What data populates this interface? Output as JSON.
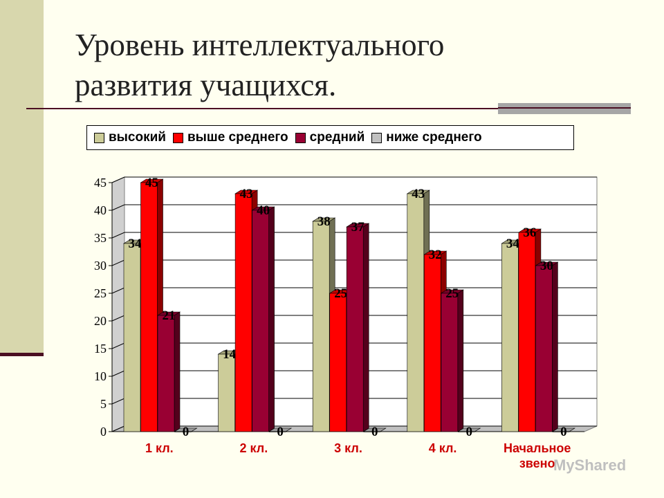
{
  "slide": {
    "title_line1": "Уровень интеллектуального",
    "title_line2": "развития учащихся."
  },
  "watermark": "MyShared",
  "chart_data": {
    "type": "bar",
    "categories": [
      "1 кл.",
      "2 кл.",
      "3 кл.",
      "4 кл.",
      "Начальное звено"
    ],
    "series": [
      {
        "name": "высокий",
        "values": [
          34,
          14,
          38,
          43,
          34
        ],
        "color": "#cccc99"
      },
      {
        "name": "выше среднего",
        "values": [
          45,
          43,
          25,
          32,
          36
        ],
        "color": "#ff0000"
      },
      {
        "name": "средний",
        "values": [
          21,
          40,
          37,
          25,
          30
        ],
        "color": "#990033"
      },
      {
        "name": "ниже среднего",
        "values": [
          0,
          0,
          0,
          0,
          0
        ],
        "color": "#c0c0c0"
      }
    ],
    "ylim": [
      0,
      45
    ],
    "yticks": [
      0,
      5,
      10,
      15,
      20,
      25,
      30,
      35,
      40,
      45
    ],
    "grid": true,
    "legend_position": "top",
    "data_labels": true,
    "style": "3d"
  }
}
